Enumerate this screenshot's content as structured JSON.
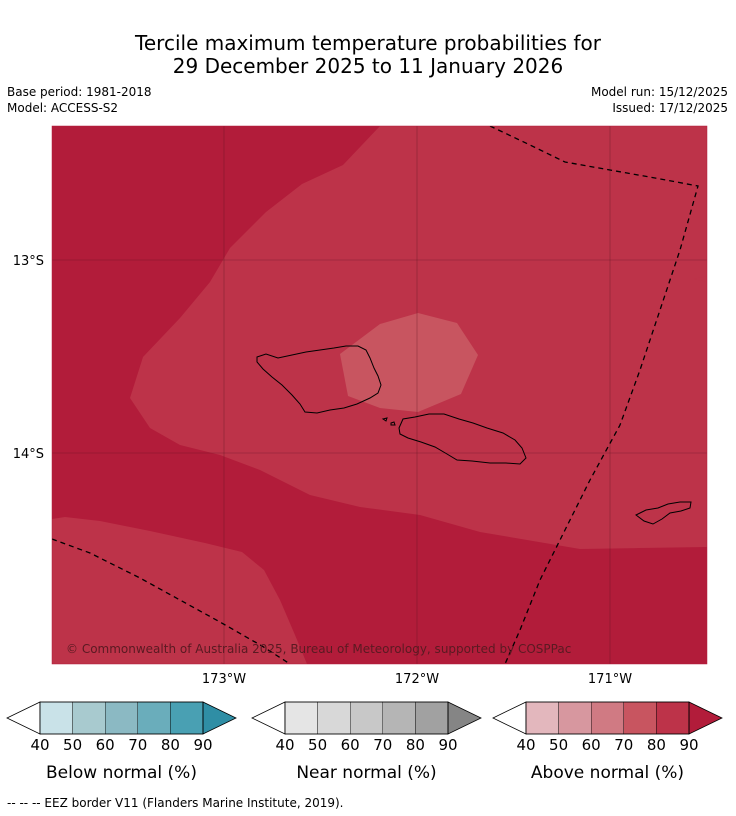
{
  "title": {
    "line1": "Tercile maximum temperature probabilities for",
    "line2": "29 December 2025 to 11 January 2026"
  },
  "meta": {
    "base_period": "Base period: 1981-2018",
    "model": "Model: ACCESS-S2",
    "model_run": "Model run: 15/12/2025",
    "issued": "Issued: 17/12/2025"
  },
  "map": {
    "lat_labels": [
      "13°S",
      "14°S"
    ],
    "lon_labels": [
      "173°W",
      "172°W",
      "171°W"
    ],
    "copyright": "© Commonwealth of Australia 2025, Bureau of Meteorology, supported by COSPPac",
    "colors": {
      "above_70": "#c85560",
      "above_80": "#bd3349",
      "above_90": "#b21c3a"
    }
  },
  "colorbars": [
    {
      "id": "below",
      "title": "Below normal (%)",
      "ticks": [
        "40",
        "50",
        "60",
        "70",
        "80",
        "90"
      ],
      "colors": [
        "#ffffff",
        "#c9e2e8",
        "#a8cacf",
        "#8bb9c3",
        "#6aadbb",
        "#49a0b3",
        "#2f8ea5"
      ]
    },
    {
      "id": "near",
      "title": "Near normal (%)",
      "ticks": [
        "40",
        "50",
        "60",
        "70",
        "80",
        "90"
      ],
      "colors": [
        "#ffffff",
        "#e5e5e5",
        "#d8d8d8",
        "#c8c8c8",
        "#b5b5b5",
        "#a1a1a1",
        "#858585"
      ]
    },
    {
      "id": "above",
      "title": "Above normal (%)",
      "ticks": [
        "40",
        "50",
        "60",
        "70",
        "80",
        "90"
      ],
      "colors": [
        "#ffffff",
        "#e3b7bd",
        "#d7979f",
        "#d07a83",
        "#c85560",
        "#bd3349",
        "#b21c3a"
      ]
    }
  ],
  "footer": "--  --  -- EEZ border V11 (Flanders Marine Institute, 2019)."
}
